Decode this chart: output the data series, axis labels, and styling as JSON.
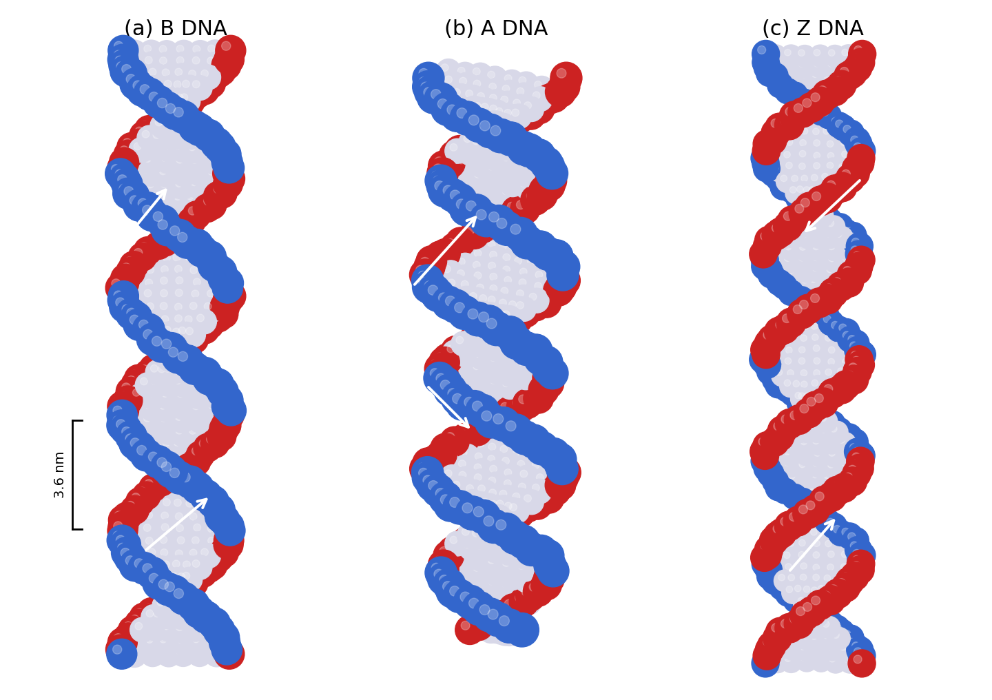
{
  "title_a": "(a) B DNA",
  "title_b": "(b) A DNA",
  "title_c": "(c) Z DNA",
  "scale_label": "3.6 nm",
  "bg_color": "#ffffff",
  "colors": {
    "blue": "#3366cc",
    "red": "#cc2222",
    "white_sphere": "#d8d8e8",
    "blue_dark": "#1144aa",
    "red_dark": "#aa1111"
  },
  "title_fontsize": 22,
  "figsize": [
    14.4,
    10.16
  ],
  "dpi": 100
}
